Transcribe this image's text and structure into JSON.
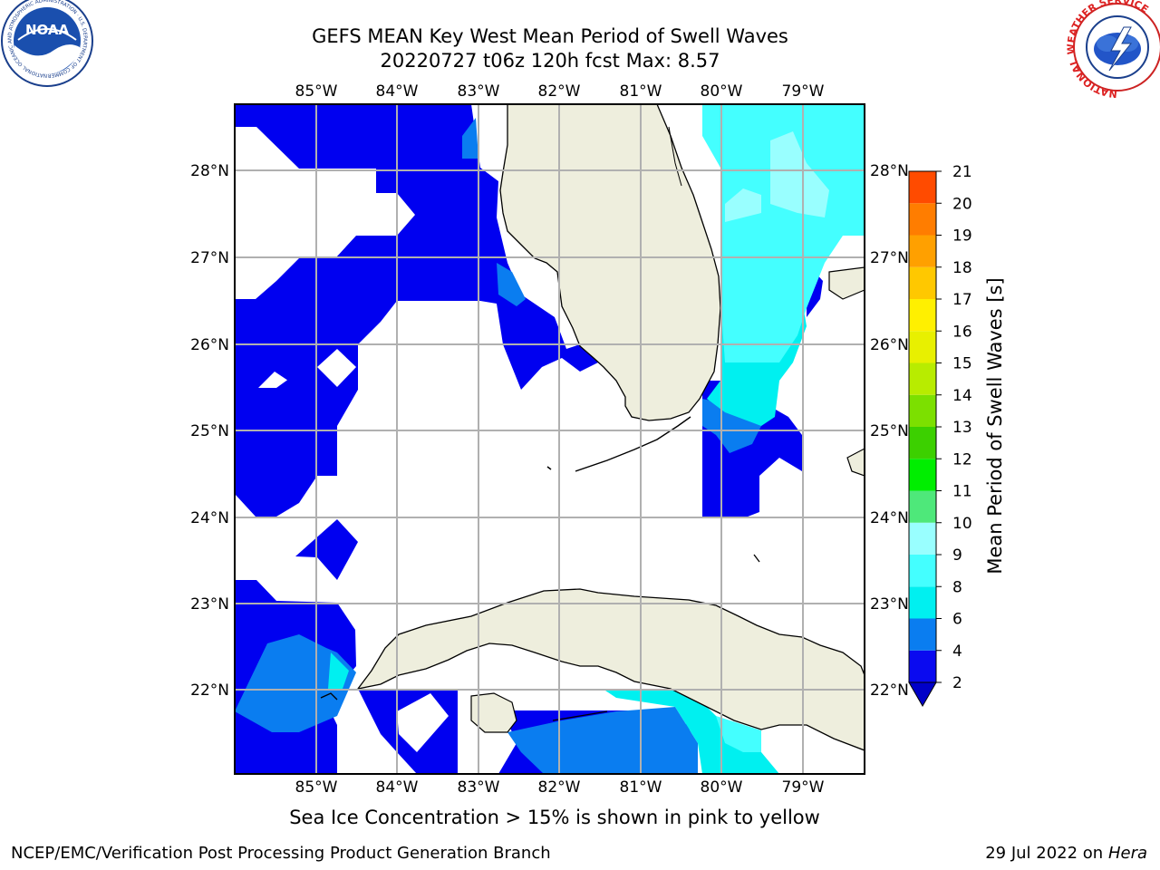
{
  "title": {
    "line1": "GEFS MEAN Key West Mean Period of Swell Waves",
    "line2": "20220727 t06z 120h fcst   Max: 8.57"
  },
  "map": {
    "lon_ticks": [
      "85°W",
      "84°W",
      "83°W",
      "82°W",
      "81°W",
      "80°W",
      "79°W"
    ],
    "lat_ticks": [
      "28°N",
      "27°N",
      "26°N",
      "25°N",
      "24°N",
      "23°N",
      "22°N"
    ],
    "land_color": "#eeeedd",
    "ocean_color": "#ffffff"
  },
  "colorbar": {
    "label": "Mean Period of Swell Waves [s]",
    "ticks": [
      "2",
      "4",
      "6",
      "8",
      "9",
      "10",
      "11",
      "12",
      "13",
      "14",
      "15",
      "16",
      "17",
      "18",
      "19",
      "20",
      "21"
    ],
    "colors": [
      "#0a0af0",
      "#0a7df0",
      "#00f0f0",
      "#44ffff",
      "#99ffff",
      "#4ee87a",
      "#00ee00",
      "#3cd000",
      "#7ce000",
      "#b8ec00",
      "#e8f000",
      "#fff000",
      "#ffc800",
      "#ffa000",
      "#ff7d00",
      "#ff4b00",
      "#ff0000"
    ]
  },
  "footer": {
    "note": "Sea Ice Concentration > 15% is shown in pink to yellow",
    "credit": "NCEP/EMC/Verification Post Processing Product Generation Branch",
    "date": "29 Jul 2022 on ",
    "machine": "Hera"
  },
  "logos": {
    "noaa_text": "NOAA",
    "noaa_ring": "NATIONAL OCEANIC AND ATMOSPHERIC ADMINISTRATION · U.S. DEPARTMENT OF COMMERCE",
    "nws_ring": "NATIONAL WEATHER SERVICE"
  },
  "colors": {
    "deep_blue": "#0000f0",
    "mid_blue": "#0a7df0",
    "cyan": "#00f0f0",
    "light_cyan": "#44ffff",
    "pale_cyan": "#99ffff"
  }
}
